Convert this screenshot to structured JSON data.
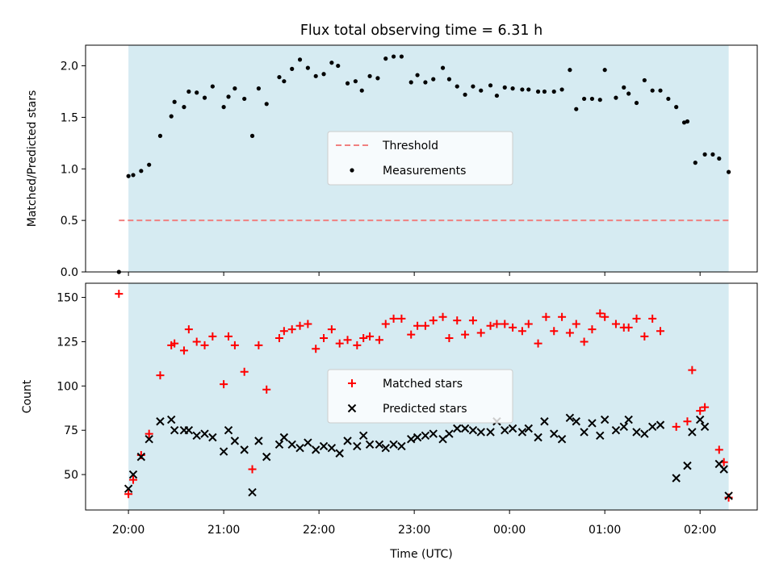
{
  "figure": {
    "title": "Flux total observing time = 6.31 h",
    "xlabel": "Time (UTC)",
    "xticks": [
      "20:00",
      "21:00",
      "22:00",
      "23:00",
      "00:00",
      "01:00",
      "02:00"
    ]
  },
  "chart_data": [
    {
      "type": "scatter",
      "ylabel": "Matched/Predicted stars",
      "ylim": [
        0,
        2.2
      ],
      "yticks": [
        0.0,
        0.5,
        1.0,
        1.5,
        2.0
      ],
      "xlim": [
        "19:33",
        "02:36"
      ],
      "observing_window": [
        "20:00",
        "02:18"
      ],
      "window_color": "#add8e6",
      "legend": {
        "placement": "center",
        "entries": [
          "Threshold",
          "Measurements"
        ]
      },
      "threshold": {
        "name": "Threshold",
        "value": 0.5,
        "x_range": [
          "19:54",
          "02:18"
        ],
        "color": "#f08080",
        "style": "dashed"
      },
      "series": [
        {
          "name": "Measurements",
          "color": "#000000",
          "points": [
            [
              "19:54",
              0.0
            ],
            [
              "20:00",
              0.93
            ],
            [
              "20:03",
              0.94
            ],
            [
              "20:08",
              0.98
            ],
            [
              "20:13",
              1.04
            ],
            [
              "20:20",
              1.32
            ],
            [
              "20:27",
              1.51
            ],
            [
              "20:29",
              1.65
            ],
            [
              "20:35",
              1.6
            ],
            [
              "20:38",
              1.75
            ],
            [
              "20:43",
              1.74
            ],
            [
              "20:48",
              1.69
            ],
            [
              "20:53",
              1.8
            ],
            [
              "21:00",
              1.6
            ],
            [
              "21:03",
              1.7
            ],
            [
              "21:07",
              1.78
            ],
            [
              "21:13",
              1.68
            ],
            [
              "21:18",
              1.32
            ],
            [
              "21:22",
              1.78
            ],
            [
              "21:27",
              1.63
            ],
            [
              "21:35",
              1.89
            ],
            [
              "21:38",
              1.85
            ],
            [
              "21:43",
              1.97
            ],
            [
              "21:48",
              2.06
            ],
            [
              "21:53",
              1.98
            ],
            [
              "21:58",
              1.9
            ],
            [
              "22:03",
              1.92
            ],
            [
              "22:08",
              2.03
            ],
            [
              "22:12",
              2.0
            ],
            [
              "22:18",
              1.83
            ],
            [
              "22:23",
              1.85
            ],
            [
              "22:27",
              1.76
            ],
            [
              "22:32",
              1.9
            ],
            [
              "22:37",
              1.88
            ],
            [
              "22:42",
              2.07
            ],
            [
              "22:47",
              2.09
            ],
            [
              "22:52",
              2.09
            ],
            [
              "22:58",
              1.84
            ],
            [
              "23:02",
              1.91
            ],
            [
              "23:07",
              1.84
            ],
            [
              "23:12",
              1.87
            ],
            [
              "23:18",
              1.98
            ],
            [
              "23:22",
              1.87
            ],
            [
              "23:27",
              1.8
            ],
            [
              "23:32",
              1.72
            ],
            [
              "23:37",
              1.8
            ],
            [
              "23:42",
              1.76
            ],
            [
              "23:48",
              1.81
            ],
            [
              "23:52",
              1.71
            ],
            [
              "23:57",
              1.79
            ],
            [
              "00:02",
              1.78
            ],
            [
              "00:08",
              1.77
            ],
            [
              "00:12",
              1.77
            ],
            [
              "00:18",
              1.75
            ],
            [
              "00:22",
              1.75
            ],
            [
              "00:28",
              1.75
            ],
            [
              "00:33",
              1.77
            ],
            [
              "00:38",
              1.96
            ],
            [
              "00:42",
              1.58
            ],
            [
              "00:47",
              1.68
            ],
            [
              "00:52",
              1.68
            ],
            [
              "00:57",
              1.67
            ],
            [
              "01:00",
              1.96
            ],
            [
              "01:07",
              1.69
            ],
            [
              "01:12",
              1.79
            ],
            [
              "01:15",
              1.73
            ],
            [
              "01:20",
              1.64
            ],
            [
              "01:25",
              1.86
            ],
            [
              "01:30",
              1.76
            ],
            [
              "01:35",
              1.76
            ],
            [
              "01:40",
              1.68
            ],
            [
              "01:45",
              1.6
            ],
            [
              "01:50",
              1.45
            ],
            [
              "01:52",
              1.46
            ],
            [
              "01:57",
              1.06
            ],
            [
              "02:03",
              1.14
            ],
            [
              "02:08",
              1.14
            ],
            [
              "02:12",
              1.1
            ],
            [
              "02:18",
              0.97
            ]
          ]
        }
      ]
    },
    {
      "type": "scatter",
      "ylabel": "Count",
      "ylim": [
        30,
        158
      ],
      "yticks": [
        50,
        75,
        100,
        125,
        150
      ],
      "xlim": [
        "19:33",
        "02:36"
      ],
      "observing_window": [
        "20:00",
        "02:18"
      ],
      "window_color": "#add8e6",
      "legend": {
        "placement": "center",
        "entries": [
          "Matched stars",
          "Predicted stars"
        ]
      },
      "series": [
        {
          "name": "Matched stars",
          "marker": "+",
          "color": "#ff0000",
          "points": [
            [
              "19:54",
              152
            ],
            [
              "20:00",
              39
            ],
            [
              "20:03",
              47
            ],
            [
              "20:08",
              61
            ],
            [
              "20:13",
              73
            ],
            [
              "20:20",
              106
            ],
            [
              "20:27",
              123
            ],
            [
              "20:29",
              124
            ],
            [
              "20:35",
              120
            ],
            [
              "20:38",
              132
            ],
            [
              "20:43",
              125
            ],
            [
              "20:48",
              123
            ],
            [
              "20:53",
              128
            ],
            [
              "21:00",
              101
            ],
            [
              "21:03",
              128
            ],
            [
              "21:07",
              123
            ],
            [
              "21:13",
              108
            ],
            [
              "21:18",
              53
            ],
            [
              "21:22",
              123
            ],
            [
              "21:27",
              98
            ],
            [
              "21:35",
              127
            ],
            [
              "21:38",
              131
            ],
            [
              "21:43",
              132
            ],
            [
              "21:48",
              134
            ],
            [
              "21:53",
              135
            ],
            [
              "21:58",
              121
            ],
            [
              "22:03",
              127
            ],
            [
              "22:08",
              132
            ],
            [
              "22:13",
              124
            ],
            [
              "22:18",
              126
            ],
            [
              "22:24",
              123
            ],
            [
              "22:28",
              127
            ],
            [
              "22:32",
              128
            ],
            [
              "22:38",
              126
            ],
            [
              "22:42",
              135
            ],
            [
              "22:47",
              138
            ],
            [
              "22:52",
              138
            ],
            [
              "22:58",
              129
            ],
            [
              "23:02",
              134
            ],
            [
              "23:07",
              134
            ],
            [
              "23:12",
              137
            ],
            [
              "23:18",
              139
            ],
            [
              "23:22",
              127
            ],
            [
              "23:27",
              137
            ],
            [
              "23:32",
              129
            ],
            [
              "23:37",
              137
            ],
            [
              "23:42",
              130
            ],
            [
              "23:48",
              134
            ],
            [
              "23:52",
              135
            ],
            [
              "23:57",
              135
            ],
            [
              "00:02",
              133
            ],
            [
              "00:08",
              131
            ],
            [
              "00:12",
              135
            ],
            [
              "00:18",
              124
            ],
            [
              "00:23",
              139
            ],
            [
              "00:28",
              131
            ],
            [
              "00:33",
              139
            ],
            [
              "00:38",
              130
            ],
            [
              "00:42",
              135
            ],
            [
              "00:47",
              125
            ],
            [
              "00:52",
              132
            ],
            [
              "00:57",
              141
            ],
            [
              "01:00",
              139
            ],
            [
              "01:07",
              135
            ],
            [
              "01:12",
              133
            ],
            [
              "01:15",
              133
            ],
            [
              "01:20",
              138
            ],
            [
              "01:25",
              128
            ],
            [
              "01:30",
              138
            ],
            [
              "01:35",
              131
            ],
            [
              "01:45",
              77
            ],
            [
              "01:52",
              80
            ],
            [
              "01:55",
              109
            ],
            [
              "02:00",
              86
            ],
            [
              "02:03",
              88
            ],
            [
              "02:12",
              64
            ],
            [
              "02:15",
              57
            ],
            [
              "02:18",
              37
            ]
          ]
        },
        {
          "name": "Predicted stars",
          "marker": "x",
          "color": "#000000",
          "points": [
            [
              "20:00",
              42
            ],
            [
              "20:03",
              50
            ],
            [
              "20:08",
              60
            ],
            [
              "20:13",
              70
            ],
            [
              "20:20",
              80
            ],
            [
              "20:27",
              81
            ],
            [
              "20:29",
              75
            ],
            [
              "20:35",
              75
            ],
            [
              "20:38",
              75
            ],
            [
              "20:43",
              72
            ],
            [
              "20:48",
              73
            ],
            [
              "20:53",
              71
            ],
            [
              "21:00",
              63
            ],
            [
              "21:03",
              75
            ],
            [
              "21:07",
              69
            ],
            [
              "21:13",
              64
            ],
            [
              "21:18",
              40
            ],
            [
              "21:22",
              69
            ],
            [
              "21:27",
              60
            ],
            [
              "21:35",
              67
            ],
            [
              "21:38",
              71
            ],
            [
              "21:43",
              67
            ],
            [
              "21:48",
              65
            ],
            [
              "21:53",
              68
            ],
            [
              "21:58",
              64
            ],
            [
              "22:03",
              66
            ],
            [
              "22:08",
              65
            ],
            [
              "22:13",
              62
            ],
            [
              "22:18",
              69
            ],
            [
              "22:24",
              66
            ],
            [
              "22:28",
              72
            ],
            [
              "22:32",
              67
            ],
            [
              "22:38",
              67
            ],
            [
              "22:42",
              65
            ],
            [
              "22:47",
              67
            ],
            [
              "22:52",
              66
            ],
            [
              "22:58",
              70
            ],
            [
              "23:02",
              71
            ],
            [
              "23:07",
              72
            ],
            [
              "23:12",
              73
            ],
            [
              "23:18",
              70
            ],
            [
              "23:22",
              73
            ],
            [
              "23:27",
              76
            ],
            [
              "23:32",
              76
            ],
            [
              "23:37",
              75
            ],
            [
              "23:42",
              74
            ],
            [
              "23:48",
              74
            ],
            [
              "23:52",
              80
            ],
            [
              "23:57",
              75
            ],
            [
              "00:02",
              76
            ],
            [
              "00:08",
              74
            ],
            [
              "00:12",
              76
            ],
            [
              "00:18",
              71
            ],
            [
              "00:22",
              80
            ],
            [
              "00:28",
              73
            ],
            [
              "00:33",
              70
            ],
            [
              "00:38",
              82
            ],
            [
              "00:42",
              80
            ],
            [
              "00:47",
              74
            ],
            [
              "00:52",
              79
            ],
            [
              "00:57",
              72
            ],
            [
              "01:00",
              81
            ],
            [
              "01:07",
              75
            ],
            [
              "01:12",
              77
            ],
            [
              "01:15",
              81
            ],
            [
              "01:20",
              74
            ],
            [
              "01:25",
              73
            ],
            [
              "01:30",
              77
            ],
            [
              "01:35",
              78
            ],
            [
              "01:45",
              48
            ],
            [
              "01:52",
              55
            ],
            [
              "01:55",
              74
            ],
            [
              "02:00",
              81
            ],
            [
              "02:03",
              77
            ],
            [
              "02:12",
              56
            ],
            [
              "02:15",
              53
            ],
            [
              "02:18",
              38
            ]
          ]
        }
      ]
    }
  ]
}
